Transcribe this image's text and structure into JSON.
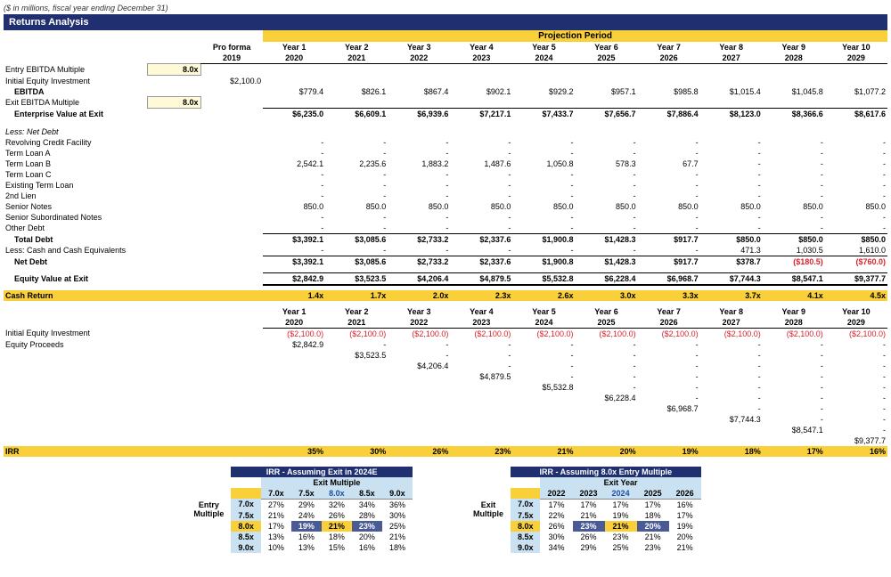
{
  "subtitle": "($ in millions, fiscal year ending December 31)",
  "section_title": "Returns Analysis",
  "proj_period_label": "Projection Period",
  "col": {
    "proforma": "Pro forma",
    "proforma_year": "2019",
    "y": [
      "Year 1",
      "Year 2",
      "Year 3",
      "Year 4",
      "Year 5",
      "Year 6",
      "Year 7",
      "Year 8",
      "Year 9",
      "Year 10"
    ],
    "yr": [
      "2020",
      "2021",
      "2022",
      "2023",
      "2024",
      "2025",
      "2026",
      "2027",
      "2028",
      "2029"
    ]
  },
  "labels": {
    "entry_mult": "Entry EBITDA Multiple",
    "init_eq": "Initial Equity Investment",
    "ebitda": "EBITDA",
    "exit_mult": "Exit EBITDA Multiple",
    "ev_exit": "Enterprise Value at Exit",
    "less_net_debt": "Less: Net Debt",
    "rcf": "Revolving Credit Facility",
    "tla": "Term Loan A",
    "tlb": "Term Loan B",
    "tlc": "Term Loan C",
    "existing_tl": "Existing Term Loan",
    "second_lien": "2nd Lien",
    "senior_notes": "Senior Notes",
    "senior_sub": "Senior Subordinated Notes",
    "other_debt": "Other Debt",
    "total_debt": "Total Debt",
    "cash": "Less: Cash and Cash Equivalents",
    "net_debt": "Net Debt",
    "equity_exit": "Equity Value at Exit",
    "cash_return": "Cash Return",
    "init_eq2": "Initial Equity Investment",
    "eq_proceeds": "Equity Proceeds",
    "irr": "IRR"
  },
  "vals": {
    "entry_mult": "8.0x",
    "exit_mult": "8.0x",
    "init_eq": "$2,100.0",
    "ebitda": [
      "$779.4",
      "$826.1",
      "$867.4",
      "$902.1",
      "$929.2",
      "$957.1",
      "$985.8",
      "$1,015.4",
      "$1,045.8",
      "$1,077.2"
    ],
    "ev_exit": [
      "$6,235.0",
      "$6,609.1",
      "$6,939.6",
      "$7,217.1",
      "$7,433.7",
      "$7,656.7",
      "$7,886.4",
      "$8,123.0",
      "$8,366.6",
      "$8,617.6"
    ],
    "dash": "-",
    "tlb": [
      "2,542.1",
      "2,235.6",
      "1,883.2",
      "1,487.6",
      "1,050.8",
      "578.3",
      "67.7",
      "-",
      "-",
      "-"
    ],
    "senior_notes": [
      "850.0",
      "850.0",
      "850.0",
      "850.0",
      "850.0",
      "850.0",
      "850.0",
      "850.0",
      "850.0",
      "850.0"
    ],
    "total_debt": [
      "$3,392.1",
      "$3,085.6",
      "$2,733.2",
      "$2,337.6",
      "$1,900.8",
      "$1,428.3",
      "$917.7",
      "$850.0",
      "$850.0",
      "$850.0"
    ],
    "cash": [
      "-",
      "-",
      "-",
      "-",
      "-",
      "-",
      "-",
      "471.3",
      "1,030.5",
      "1,610.0"
    ],
    "net_debt": [
      "$3,392.1",
      "$3,085.6",
      "$2,733.2",
      "$2,337.6",
      "$1,900.8",
      "$1,428.3",
      "$917.7",
      "$378.7",
      "($180.5)",
      "($760.0)"
    ],
    "net_debt_neg": [
      false,
      false,
      false,
      false,
      false,
      false,
      false,
      false,
      true,
      true
    ],
    "equity_exit": [
      "$2,842.9",
      "$3,523.5",
      "$4,206.4",
      "$4,879.5",
      "$5,532.8",
      "$6,228.4",
      "$6,968.7",
      "$7,744.3",
      "$8,547.1",
      "$9,377.7"
    ],
    "cash_return": [
      "1.4x",
      "1.7x",
      "2.0x",
      "2.3x",
      "2.6x",
      "3.0x",
      "3.3x",
      "3.7x",
      "4.1x",
      "4.5x"
    ],
    "init_eq2": "($2,100.0)",
    "eq_proc_diag": [
      "$2,842.9",
      "$3,523.5",
      "$4,206.4",
      "$4,879.5",
      "$5,532.8",
      "$6,228.4",
      "$6,968.7",
      "$7,744.3",
      "$8,547.1",
      "$9,377.7"
    ],
    "irr": [
      "35%",
      "30%",
      "26%",
      "23%",
      "21%",
      "20%",
      "19%",
      "18%",
      "17%",
      "16%"
    ]
  },
  "sens1": {
    "title": "IRR - Assuming Exit in 2024E",
    "col_label": "Exit Multiple",
    "row_label_top": "Entry",
    "row_label_bot": "Multiple",
    "cols": [
      "7.0x",
      "7.5x",
      "8.0x",
      "8.5x",
      "9.0x"
    ],
    "rows": [
      "7.0x",
      "7.5x",
      "8.0x",
      "8.5x",
      "9.0x"
    ],
    "cells": [
      [
        "27%",
        "29%",
        "32%",
        "34%",
        "36%"
      ],
      [
        "21%",
        "24%",
        "26%",
        "28%",
        "30%"
      ],
      [
        "17%",
        "19%",
        "21%",
        "23%",
        "25%"
      ],
      [
        "13%",
        "16%",
        "18%",
        "20%",
        "21%"
      ],
      [
        "10%",
        "13%",
        "15%",
        "16%",
        "18%"
      ]
    ],
    "hl_row": 2,
    "hl_col": 2,
    "dim_cols": [
      1,
      3
    ],
    "dim_row": 2
  },
  "sens2": {
    "title": "IRR - Assuming 8.0x Entry Multiple",
    "col_label": "Exit Year",
    "row_label_top": "Exit",
    "row_label_bot": "Multiple",
    "cols": [
      "2022",
      "2023",
      "2024",
      "2025",
      "2026"
    ],
    "rows": [
      "7.0x",
      "7.5x",
      "8.0x",
      "8.5x",
      "9.0x"
    ],
    "cells": [
      [
        "17%",
        "17%",
        "17%",
        "17%",
        "16%"
      ],
      [
        "22%",
        "21%",
        "19%",
        "18%",
        "17%"
      ],
      [
        "26%",
        "23%",
        "21%",
        "20%",
        "19%"
      ],
      [
        "30%",
        "26%",
        "23%",
        "21%",
        "20%"
      ],
      [
        "34%",
        "29%",
        "25%",
        "23%",
        "21%"
      ]
    ],
    "hl_row": 2,
    "hl_col": 2,
    "dim_cols": [
      1,
      3
    ],
    "dim_row": 2
  }
}
